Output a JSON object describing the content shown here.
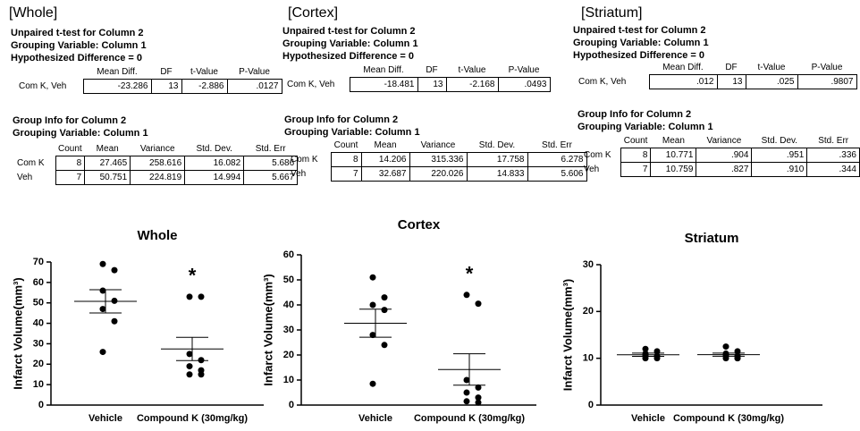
{
  "stats": [
    {
      "heading": "[Whole]",
      "lines": [
        "Unpaired t-test for Column 2",
        "Grouping Variable: Column 1",
        "Hypothesized Difference = 0"
      ],
      "ttest": {
        "header": [
          "Mean Diff.",
          "DF",
          "t-Value",
          "P-Value"
        ],
        "label": "Com K, Veh",
        "cells": [
          "-23.286",
          "13",
          "-2.886",
          ".0127"
        ]
      },
      "group_title": [
        "Group Info for Column 2",
        "Grouping Variable: Column 1"
      ],
      "group": {
        "header": [
          "Count",
          "Mean",
          "Variance",
          "Std. Dev.",
          "Std. Err"
        ],
        "rows": [
          [
            "Com K",
            "8",
            "27.465",
            "258.616",
            "16.082",
            "5.686"
          ],
          [
            "Veh",
            "7",
            "50.751",
            "224.819",
            "14.994",
            "5.667"
          ]
        ]
      }
    },
    {
      "heading": "[Cortex]",
      "lines": [
        "Unpaired t-test for Column 2",
        "Grouping Variable: Column 1",
        "Hypothesized Difference = 0"
      ],
      "ttest": {
        "header": [
          "Mean Diff.",
          "DF",
          "t-Value",
          "P-Value"
        ],
        "label": "Com K, Veh",
        "cells": [
          "-18.481",
          "13",
          "-2.168",
          ".0493"
        ]
      },
      "group_title": [
        "Group Info for Column 2",
        "Grouping Variable: Column 1"
      ],
      "group": {
        "header": [
          "Count",
          "Mean",
          "Variance",
          "Std. Dev.",
          "Std. Err"
        ],
        "rows": [
          [
            "Com K",
            "8",
            "14.206",
            "315.336",
            "17.758",
            "6.278"
          ],
          [
            "Veh",
            "7",
            "32.687",
            "220.026",
            "14.833",
            "5.606"
          ]
        ]
      }
    },
    {
      "heading": "[Striatum]",
      "lines": [
        "Unpaired t-test for Column 2",
        "Grouping Variable: Column 1",
        "Hypothesized Difference = 0"
      ],
      "ttest": {
        "header": [
          "Mean Diff.",
          "DF",
          "t-Value",
          "P-Value"
        ],
        "label": "Com K, Veh",
        "cells": [
          ".012",
          "13",
          ".025",
          ".9807"
        ]
      },
      "group_title": [
        "Group Info for Column 2",
        "Grouping Variable: Column 1"
      ],
      "group": {
        "header": [
          "Count",
          "Mean",
          "Variance",
          "Std. Dev.",
          "Std. Err"
        ],
        "rows": [
          [
            "Com K",
            "8",
            "10.771",
            ".904",
            ".951",
            ".336"
          ],
          [
            "Veh",
            "7",
            "10.759",
            ".827",
            ".910",
            ".344"
          ]
        ]
      }
    }
  ],
  "chart_data": [
    {
      "type": "scatter",
      "title": "Whole",
      "y_label": "Infarct Volume(mm³)",
      "color": "#000000",
      "categories": [
        "Vehicle",
        "Compound K (30mg/kg)"
      ],
      "groups": [
        {
          "values": [
            69,
            66,
            56,
            51,
            47,
            41,
            26
          ],
          "mean": 50.751,
          "sem": 5.667
        },
        {
          "values": [
            53,
            53,
            25,
            22,
            19,
            17,
            15,
            15
          ],
          "mean": 27.465,
          "sem": 5.686
        }
      ],
      "annotation": "*",
      "ylim": [
        0,
        70
      ],
      "yticks": [
        0,
        10,
        20,
        30,
        40,
        50,
        60,
        70
      ]
    },
    {
      "type": "scatter",
      "title": "Cortex",
      "y_label": "Infarct Volume(mm³)",
      "color": "#000000",
      "categories": [
        "Vehicle",
        "Compound K (30mg/kg)"
      ],
      "groups": [
        {
          "values": [
            51,
            43,
            40,
            38,
            28,
            24,
            8.5
          ],
          "mean": 32.687,
          "sem": 5.606
        },
        {
          "values": [
            44,
            40.5,
            10,
            7,
            5,
            3,
            1.5,
            1
          ],
          "mean": 14.206,
          "sem": 6.278
        }
      ],
      "annotation": "*",
      "ylim": [
        0,
        60
      ],
      "yticks": [
        0,
        10,
        20,
        30,
        40,
        50,
        60
      ]
    },
    {
      "type": "scatter",
      "title": "Striatum",
      "y_label": "Infarct Volume(mm³)",
      "color": "#000000",
      "categories": [
        "Vehicle",
        "Compound K (30mg/kg)"
      ],
      "groups": [
        {
          "values": [
            12,
            11.5,
            11,
            10.5,
            10.5,
            10,
            10
          ],
          "mean": 10.759,
          "sem": 0.344
        },
        {
          "values": [
            12.5,
            11.5,
            11,
            10.5,
            10.5,
            10,
            10,
            10
          ],
          "mean": 10.771,
          "sem": 0.336
        }
      ],
      "ylim": [
        0,
        30
      ],
      "yticks": [
        0,
        10,
        20,
        30
      ]
    }
  ]
}
